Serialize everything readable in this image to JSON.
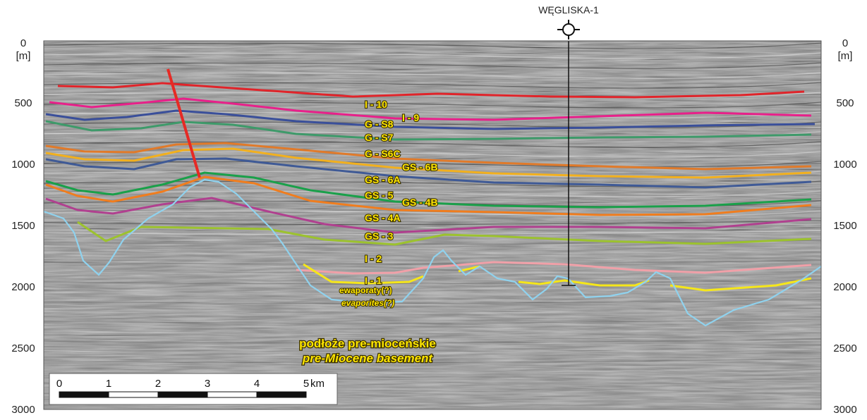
{
  "well": {
    "name": "WĘGLISKA-1"
  },
  "depth_axis": {
    "unit": "[m]",
    "ticks": [
      "0",
      "500",
      "1000",
      "1500",
      "2000",
      "2500",
      "3000"
    ]
  },
  "horizons": [
    {
      "label": "I - 10",
      "color": "#e0242a"
    },
    {
      "label": "I - 9",
      "color": "#e8208a"
    },
    {
      "label": "G - S8",
      "color": "#3a4f9a"
    },
    {
      "label": "G - S7",
      "color": "#3e9a6a"
    },
    {
      "label": "G - S6C",
      "color": "#e07a2a"
    },
    {
      "label": "GS - 6B",
      "color": "#f2b01e"
    },
    {
      "label": "GS - 6A",
      "color": "#3f5a96"
    },
    {
      "label": "GS - 5",
      "color": "#1aa04a"
    },
    {
      "label": "GS - 4B",
      "color": "#f07d1e"
    },
    {
      "label": "GS - 4A",
      "color": "#b0408f"
    },
    {
      "label": "GS - 3",
      "color": "#9cc22e"
    },
    {
      "label": "I - 2",
      "color": "#f0a0a8"
    },
    {
      "label": "I - 1",
      "color": "#f5e61a"
    }
  ],
  "notes": {
    "evaporites_pl": "ewaporaty(?)",
    "evaporites_en": "evaporites(?)",
    "basement_pl": "podłoże pre-mioceńskie",
    "basement_en": "pre-Miocene basement"
  },
  "colors": {
    "fault": "#e62a25",
    "basement": "#8fd2ee",
    "well": "#111111"
  },
  "scale_bar": {
    "labels": [
      "0",
      "1",
      "2",
      "3",
      "4",
      "5"
    ],
    "unit": "km"
  }
}
